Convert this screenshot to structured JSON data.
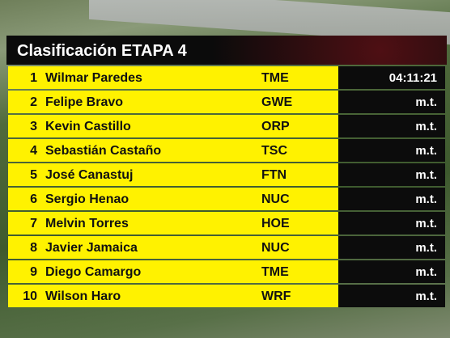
{
  "header": {
    "title": "Clasificación ETAPA 4"
  },
  "table": {
    "rows": [
      [
        "1",
        "Wilmar Paredes",
        "TME",
        "04:11:21"
      ],
      [
        "2",
        "Felipe Bravo",
        "GWE",
        "m.t."
      ],
      [
        "3",
        "Kevin Castillo",
        "ORP",
        "m.t."
      ],
      [
        "4",
        "Sebastián Castaño",
        "TSC",
        "m.t."
      ],
      [
        "5",
        "José Canastuj",
        "FTN",
        "m.t."
      ],
      [
        "6",
        "Sergio Henao",
        "NUC",
        "m.t."
      ],
      [
        "7",
        "Melvin Torres",
        "HOE",
        "m.t."
      ],
      [
        "8",
        "Javier Jamaica",
        "NUC",
        "m.t."
      ],
      [
        "9",
        "Diego Camargo",
        "TME",
        "m.t."
      ],
      [
        "10",
        "Wilson Haro",
        "WRF",
        "m.t."
      ]
    ]
  }
}
